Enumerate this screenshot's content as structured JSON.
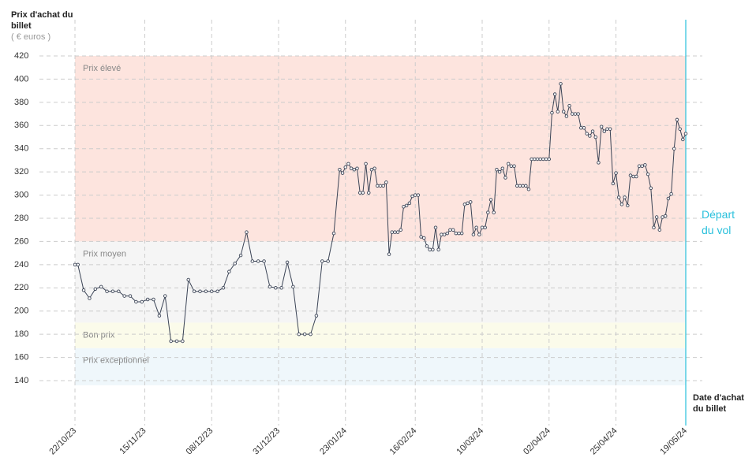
{
  "chart_data": {
    "type": "line",
    "y_label": "Prix d'achat du billet",
    "y_unit": "( € euros )",
    "x_label": "Date d'achat du billet",
    "annotation": {
      "text": "Départ du vol",
      "x": "2024-05-19",
      "color": "#29c0dc"
    },
    "zones": [
      {
        "label": "Prix élevé",
        "from": 260,
        "to": 420,
        "color": "#fde4de"
      },
      {
        "label": "Prix moyen",
        "from": 190,
        "to": 260,
        "color": "#f5f5f5"
      },
      {
        "label": "Bon prix",
        "from": 168,
        "to": 190,
        "color": "#fbfbea"
      },
      {
        "label": "Prix exceptionnel",
        "from": 136,
        "to": 168,
        "color": "#eff7fb"
      }
    ],
    "xlim": [
      "2023-10-22",
      "2024-05-19"
    ],
    "xticks": [
      {
        "value": "2023-10-22",
        "label": "22/10/23"
      },
      {
        "value": "2023-11-15",
        "label": "15/11/23"
      },
      {
        "value": "2023-12-08",
        "label": "08/12/23"
      },
      {
        "value": "2023-12-31",
        "label": "31/12/23"
      },
      {
        "value": "2024-01-23",
        "label": "23/01/24"
      },
      {
        "value": "2024-02-16",
        "label": "16/02/24"
      },
      {
        "value": "2024-03-10",
        "label": "10/03/24"
      },
      {
        "value": "2024-04-02",
        "label": "02/04/24"
      },
      {
        "value": "2024-04-25",
        "label": "25/04/24"
      },
      {
        "value": "2024-05-19",
        "label": "19/05/24"
      }
    ],
    "ylim": [
      420,
      140
    ],
    "yticks": [
      420,
      400,
      380,
      360,
      340,
      320,
      300,
      280,
      260,
      240,
      220,
      200,
      180,
      160,
      140
    ],
    "grid": true,
    "x": [
      "2023-10-22",
      "2023-10-23",
      "2023-10-25",
      "2023-10-27",
      "2023-10-29",
      "2023-10-31",
      "2023-11-02",
      "2023-11-04",
      "2023-11-06",
      "2023-11-08",
      "2023-11-10",
      "2023-11-12",
      "2023-11-14",
      "2023-11-16",
      "2023-11-18",
      "2023-11-20",
      "2023-11-22",
      "2023-11-24",
      "2023-11-26",
      "2023-11-28",
      "2023-11-30",
      "2023-12-02",
      "2023-12-04",
      "2023-12-06",
      "2023-12-08",
      "2023-12-10",
      "2023-12-12",
      "2023-12-14",
      "2023-12-16",
      "2023-12-18",
      "2023-12-20",
      "2023-12-22",
      "2023-12-24",
      "2023-12-26",
      "2023-12-28",
      "2023-12-30",
      "2024-01-01",
      "2024-01-03",
      "2024-01-05",
      "2024-01-07",
      "2024-01-09",
      "2024-01-11",
      "2024-01-13",
      "2024-01-15",
      "2024-01-17",
      "2024-01-19",
      "2024-01-21",
      "2024-01-22",
      "2024-01-23",
      "2024-01-24",
      "2024-01-25",
      "2024-01-26",
      "2024-01-27",
      "2024-01-28",
      "2024-01-29",
      "2024-01-30",
      "2024-01-31",
      "2024-02-01",
      "2024-02-02",
      "2024-02-03",
      "2024-02-04",
      "2024-02-05",
      "2024-02-06",
      "2024-02-07",
      "2024-02-08",
      "2024-02-09",
      "2024-02-10",
      "2024-02-11",
      "2024-02-12",
      "2024-02-13",
      "2024-02-14",
      "2024-02-15",
      "2024-02-16",
      "2024-02-17",
      "2024-02-18",
      "2024-02-19",
      "2024-02-20",
      "2024-02-21",
      "2024-02-22",
      "2024-02-23",
      "2024-02-24",
      "2024-02-25",
      "2024-02-26",
      "2024-02-27",
      "2024-02-28",
      "2024-02-29",
      "2024-03-01",
      "2024-03-02",
      "2024-03-03",
      "2024-03-04",
      "2024-03-05",
      "2024-03-06",
      "2024-03-07",
      "2024-03-08",
      "2024-03-09",
      "2024-03-10",
      "2024-03-11",
      "2024-03-12",
      "2024-03-13",
      "2024-03-14",
      "2024-03-15",
      "2024-03-16",
      "2024-03-17",
      "2024-03-18",
      "2024-03-19",
      "2024-03-20",
      "2024-03-21",
      "2024-03-22",
      "2024-03-23",
      "2024-03-24",
      "2024-03-25",
      "2024-03-26",
      "2024-03-27",
      "2024-03-28",
      "2024-03-29",
      "2024-03-30",
      "2024-03-31",
      "2024-04-01",
      "2024-04-02",
      "2024-04-03",
      "2024-04-04",
      "2024-04-05",
      "2024-04-06",
      "2024-04-07",
      "2024-04-08",
      "2024-04-09",
      "2024-04-10",
      "2024-04-11",
      "2024-04-12",
      "2024-04-13",
      "2024-04-14",
      "2024-04-15",
      "2024-04-16",
      "2024-04-17",
      "2024-04-18",
      "2024-04-19",
      "2024-04-20",
      "2024-04-21",
      "2024-04-22",
      "2024-04-23",
      "2024-04-24",
      "2024-04-25",
      "2024-04-26",
      "2024-04-27",
      "2024-04-28",
      "2024-04-29",
      "2024-04-30",
      "2024-05-01",
      "2024-05-02",
      "2024-05-03",
      "2024-05-04",
      "2024-05-05",
      "2024-05-06",
      "2024-05-07",
      "2024-05-08",
      "2024-05-09",
      "2024-05-10",
      "2024-05-11",
      "2024-05-12",
      "2024-05-13",
      "2024-05-14",
      "2024-05-15",
      "2024-05-16",
      "2024-05-17",
      "2024-05-18",
      "2024-05-19"
    ],
    "series": [
      {
        "name": "Prix",
        "color": "#3b4456",
        "values": [
          240,
          240,
          218,
          211,
          219,
          221,
          217,
          217,
          217,
          213,
          213,
          208,
          208,
          210,
          210,
          196,
          213,
          174,
          174,
          174,
          227,
          217,
          217,
          217,
          217,
          217,
          220,
          234,
          241,
          248,
          268,
          243,
          243,
          243,
          221,
          220,
          220,
          242,
          221,
          180,
          180,
          180,
          196,
          243,
          243,
          267,
          322,
          319,
          324,
          327,
          323,
          322,
          323,
          302,
          302,
          327,
          302,
          322,
          323,
          308,
          308,
          308,
          311,
          249,
          268,
          268,
          268,
          270,
          290,
          291,
          293,
          299,
          300,
          300,
          264,
          263,
          256,
          253,
          253,
          272,
          253,
          266,
          266,
          267,
          270,
          270,
          267,
          267,
          267,
          292,
          293,
          294,
          266,
          272,
          266,
          272,
          272,
          285,
          296,
          285,
          322,
          320,
          323,
          315,
          327,
          325,
          325,
          308,
          308,
          308,
          308,
          305,
          331,
          331,
          331,
          331,
          331,
          331,
          331,
          371,
          387,
          372,
          396,
          372,
          368,
          377,
          370,
          370,
          370,
          358,
          358,
          353,
          351,
          355,
          350,
          328,
          359,
          355,
          357,
          357,
          310,
          319,
          298,
          292,
          298,
          291,
          317,
          316,
          316,
          325,
          325,
          326,
          318,
          306,
          272,
          281,
          270,
          281,
          282,
          297,
          301,
          340,
          365,
          357,
          348,
          353
        ]
      }
    ]
  }
}
